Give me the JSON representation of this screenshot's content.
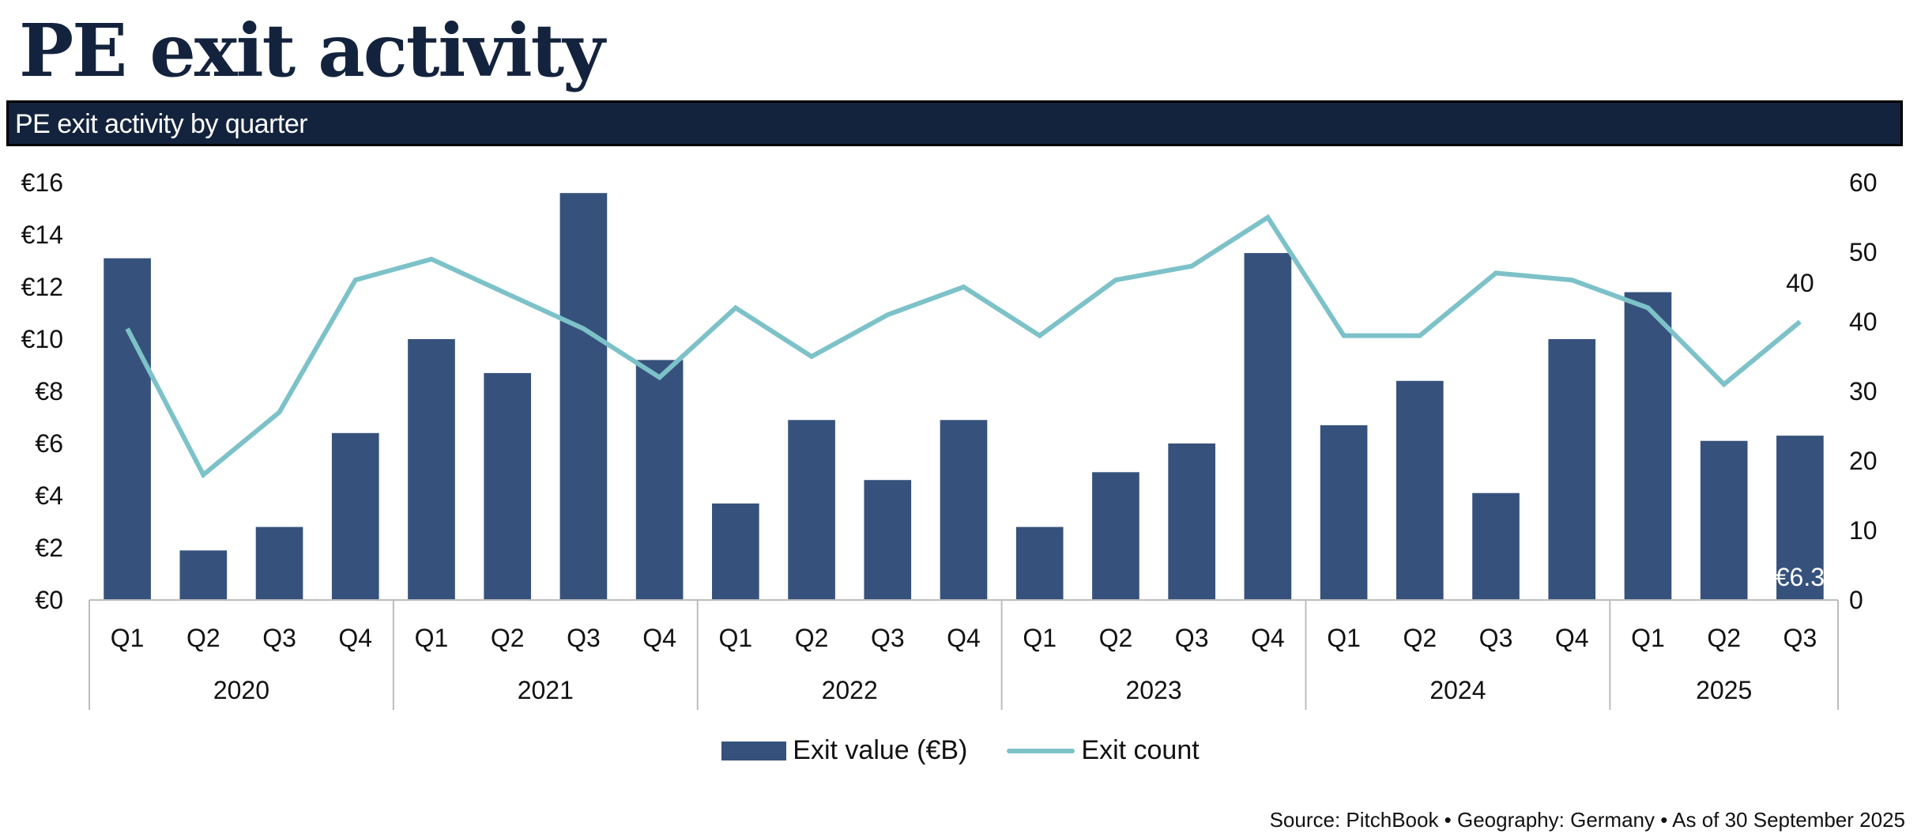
{
  "header": {
    "title": "PE exit activity",
    "subtitle": "PE exit activity by quarter"
  },
  "colors": {
    "bar": "#36527c",
    "line": "#7cc2c8",
    "header_bg": "#14233d"
  },
  "chart_data": {
    "type": "bar",
    "title": "PE exit activity by quarter",
    "xlabel": "",
    "ylabel": "Exit value (€B)",
    "y2label": "Exit count",
    "ylim": [
      0,
      16
    ],
    "y2lim": [
      0,
      60
    ],
    "y_ticks": [
      "€0",
      "€2",
      "€4",
      "€6",
      "€8",
      "€10",
      "€12",
      "€14",
      "€16"
    ],
    "y2_ticks": [
      "0",
      "10",
      "20",
      "30",
      "40",
      "50",
      "60"
    ],
    "grid": false,
    "legend_position": "bottom-center",
    "groups": [
      {
        "year": "2020",
        "quarters": [
          "Q1",
          "Q2",
          "Q3",
          "Q4"
        ]
      },
      {
        "year": "2021",
        "quarters": [
          "Q1",
          "Q2",
          "Q3",
          "Q4"
        ]
      },
      {
        "year": "2022",
        "quarters": [
          "Q1",
          "Q2",
          "Q3",
          "Q4"
        ]
      },
      {
        "year": "2023",
        "quarters": [
          "Q1",
          "Q2",
          "Q3",
          "Q4"
        ]
      },
      {
        "year": "2024",
        "quarters": [
          "Q1",
          "Q2",
          "Q3",
          "Q4"
        ]
      },
      {
        "year": "2025",
        "quarters": [
          "Q1",
          "Q2",
          "Q3"
        ]
      }
    ],
    "series": [
      {
        "name": "Exit value (€B)",
        "type": "bar",
        "axis": "left",
        "values": [
          13.1,
          1.9,
          2.8,
          6.4,
          10.0,
          8.7,
          15.6,
          9.2,
          3.7,
          6.9,
          4.6,
          6.9,
          2.8,
          4.9,
          6.0,
          13.3,
          6.7,
          8.4,
          4.1,
          10.0,
          11.8,
          6.1,
          6.3
        ]
      },
      {
        "name": "Exit count",
        "type": "line",
        "axis": "right",
        "values": [
          39,
          18,
          27,
          46,
          49,
          44,
          39,
          32,
          42,
          35,
          41,
          45,
          38,
          46,
          48,
          55,
          38,
          38,
          47,
          46,
          42,
          31,
          40
        ]
      }
    ],
    "annotations": [
      {
        "series": "Exit value (€B)",
        "index": 22,
        "text": "€6.3"
      },
      {
        "series": "Exit count",
        "index": 22,
        "text": "40"
      }
    ]
  },
  "legend": {
    "bar_label": "Exit value (€B)",
    "line_label": "Exit count"
  },
  "footer": {
    "source": "Source: PitchBook • Geography: Germany • As of 30 September 2025"
  }
}
